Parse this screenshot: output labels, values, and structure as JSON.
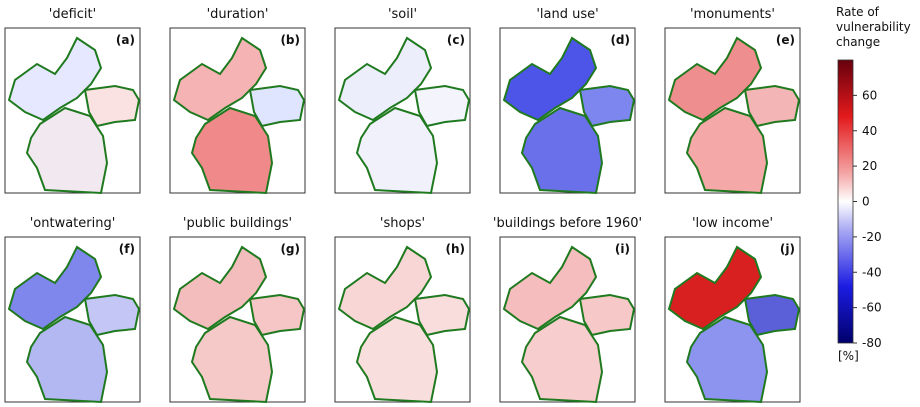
{
  "panels": [
    {
      "title": "'deficit'",
      "letter": "(a)"
    },
    {
      "title": "'duration'",
      "letter": "(b)"
    },
    {
      "title": "'soil'",
      "letter": "(c)"
    },
    {
      "title": "'land use'",
      "letter": "(d)"
    },
    {
      "title": "'monuments'",
      "letter": "(e)"
    },
    {
      "title": "'ontwatering'",
      "letter": "(f)"
    },
    {
      "title": "'public buildings'",
      "letter": "(g)"
    },
    {
      "title": "'shops'",
      "letter": "(h)"
    },
    {
      "title": "'buildings before 1960'",
      "letter": "(i)"
    },
    {
      "title": "'low income'",
      "letter": "(j)"
    }
  ],
  "colorbar": {
    "label_lines": [
      "Rate of",
      "vulnerability",
      "change"
    ],
    "unit": "[%]",
    "clim": [
      -80,
      80
    ],
    "ticks": [
      60,
      40,
      20,
      0,
      -20,
      -40,
      -60,
      -80
    ]
  }
}
